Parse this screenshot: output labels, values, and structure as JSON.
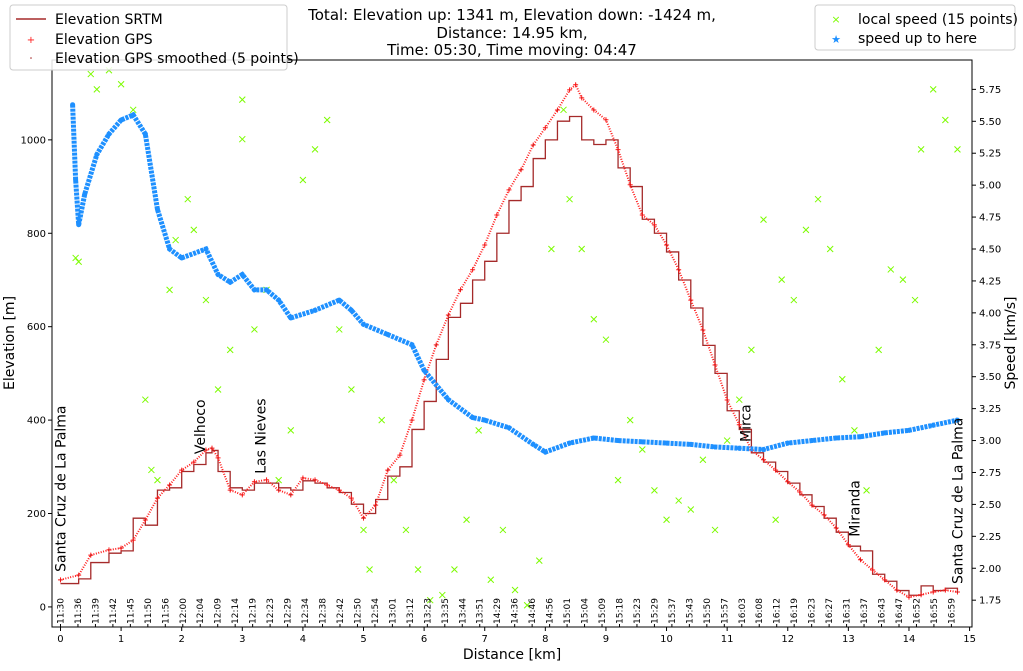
{
  "chart_data": {
    "type": "line",
    "title_lines": [
      "Total: Elevation up: 1341 m, Elevation down: -1424 m,",
      "Distance: 14.95 km,",
      "Time: 05:30, Time moving: 04:47"
    ],
    "xlabel": "Distance [km]",
    "ylabel_left": "Elevation [m]",
    "ylabel_right": "Speed [km/s]",
    "xlim": [
      -0.14,
      15.04
    ],
    "ylim_left": [
      -43,
      1171
    ],
    "ylim_right": [
      1.54,
      5.98
    ],
    "x_ticks": [
      0,
      1,
      2,
      3,
      4,
      5,
      6,
      7,
      8,
      9,
      10,
      11,
      12,
      13,
      14,
      15
    ],
    "y_ticks_left": [
      0,
      200,
      400,
      600,
      800,
      1000
    ],
    "y_ticks_right": [
      "1.75",
      "2.00",
      "2.25",
      "2.50",
      "2.75",
      "3.00",
      "3.25",
      "3.50",
      "3.75",
      "4.00",
      "4.25",
      "4.50",
      "4.75",
      "5.00",
      "5.25",
      "5.50",
      "5.75"
    ],
    "time_ticks": [
      "11:30",
      "11:36",
      "11:39",
      "11:42",
      "11:45",
      "11:50",
      "11:56",
      "12:00",
      "12:04",
      "12:09",
      "12:14",
      "12:19",
      "12:23",
      "12:29",
      "12:34",
      "12:38",
      "12:42",
      "12:50",
      "12:54",
      "13:01",
      "13:12",
      "13:23",
      "13:35",
      "13:44",
      "13:51",
      "14:29",
      "14:36",
      "14:46",
      "14:56",
      "15:01",
      "15:04",
      "15:09",
      "15:18",
      "15:23",
      "15:29",
      "15:37",
      "15:43",
      "15:50",
      "15:57",
      "16:03",
      "16:08",
      "16:12",
      "16:19",
      "16:23",
      "16:27",
      "16:31",
      "16:37",
      "16:43",
      "16:47",
      "16:52",
      "16:55",
      "16:59"
    ],
    "time_ticks_range_km": [
      0,
      14.7
    ],
    "legend_left": {
      "placement": "upper-left",
      "entries": [
        "Elevation SRTM",
        "Elevation GPS",
        "Elevation GPS smoothed (5 points)"
      ]
    },
    "legend_right": {
      "placement": "upper-right",
      "entries": [
        "local speed (15 points)",
        "speed up to here"
      ]
    },
    "colors": {
      "srtm": "#a52a2a",
      "gps": "#ff1a1a",
      "smoothed": "#a52a2a",
      "local_speed": "#7cfc00",
      "cumulative_speed": "#1e90ff"
    },
    "annotations": [
      {
        "km": 0.0,
        "text": "Santa Cruz de La Palma"
      },
      {
        "km": 2.3,
        "text": "Velhoco"
      },
      {
        "km": 3.3,
        "text": "Las Nieves"
      },
      {
        "km": 11.3,
        "text": "Mirca"
      },
      {
        "km": 13.1,
        "text": "Miranda"
      },
      {
        "km": 14.8,
        "text": "Santa Cruz de La Palma"
      }
    ],
    "series": [
      {
        "name": "Elevation GPS",
        "axis": "left",
        "points": [
          [
            0,
            58
          ],
          [
            0.3,
            68
          ],
          [
            0.5,
            111
          ],
          [
            0.8,
            122
          ],
          [
            1.0,
            126
          ],
          [
            1.2,
            143
          ],
          [
            1.4,
            186
          ],
          [
            1.6,
            233
          ],
          [
            1.8,
            261
          ],
          [
            2.0,
            293
          ],
          [
            2.2,
            310
          ],
          [
            2.4,
            336
          ],
          [
            2.5,
            340
          ],
          [
            2.6,
            319
          ],
          [
            2.8,
            250
          ],
          [
            3.0,
            240
          ],
          [
            3.2,
            268
          ],
          [
            3.4,
            272
          ],
          [
            3.6,
            250
          ],
          [
            3.8,
            240
          ],
          [
            4.0,
            276
          ],
          [
            4.2,
            272
          ],
          [
            4.4,
            261
          ],
          [
            4.6,
            250
          ],
          [
            4.8,
            233
          ],
          [
            5.0,
            190
          ],
          [
            5.2,
            218
          ],
          [
            5.4,
            293
          ],
          [
            5.6,
            325
          ],
          [
            5.8,
            400
          ],
          [
            6.0,
            486
          ],
          [
            6.2,
            561
          ],
          [
            6.4,
            625
          ],
          [
            6.6,
            679
          ],
          [
            6.8,
            722
          ],
          [
            7.0,
            775
          ],
          [
            7.2,
            839
          ],
          [
            7.4,
            893
          ],
          [
            7.6,
            936
          ],
          [
            7.8,
            989
          ],
          [
            8.0,
            1026
          ],
          [
            8.2,
            1064
          ],
          [
            8.4,
            1107
          ],
          [
            8.5,
            1118
          ],
          [
            8.6,
            1090
          ],
          [
            8.8,
            1064
          ],
          [
            9.0,
            1043
          ],
          [
            9.2,
            979
          ],
          [
            9.4,
            904
          ],
          [
            9.6,
            839
          ],
          [
            9.8,
            818
          ],
          [
            10.0,
            775
          ],
          [
            10.2,
            722
          ],
          [
            10.4,
            657
          ],
          [
            10.6,
            593
          ],
          [
            10.8,
            518
          ],
          [
            11.0,
            443
          ],
          [
            11.2,
            390
          ],
          [
            11.4,
            336
          ],
          [
            11.6,
            315
          ],
          [
            11.8,
            293
          ],
          [
            12.0,
            268
          ],
          [
            12.2,
            246
          ],
          [
            12.4,
            218
          ],
          [
            12.6,
            197
          ],
          [
            12.8,
            169
          ],
          [
            13.0,
            133
          ],
          [
            13.2,
            101
          ],
          [
            13.4,
            79
          ],
          [
            13.6,
            58
          ],
          [
            13.8,
            36
          ],
          [
            14.0,
            21
          ],
          [
            14.2,
            26
          ],
          [
            14.4,
            32
          ],
          [
            14.6,
            36
          ],
          [
            14.8,
            32
          ]
        ]
      },
      {
        "name": "Elevation SRTM",
        "axis": "left",
        "points": [
          [
            0,
            50
          ],
          [
            0.3,
            60
          ],
          [
            0.5,
            95
          ],
          [
            0.8,
            115
          ],
          [
            1.0,
            120
          ],
          [
            1.2,
            190
          ],
          [
            1.4,
            175
          ],
          [
            1.6,
            250
          ],
          [
            1.8,
            255
          ],
          [
            2.0,
            290
          ],
          [
            2.2,
            305
          ],
          [
            2.4,
            330
          ],
          [
            2.5,
            335
          ],
          [
            2.6,
            290
          ],
          [
            2.8,
            255
          ],
          [
            3.0,
            250
          ],
          [
            3.2,
            265
          ],
          [
            3.4,
            265
          ],
          [
            3.6,
            255
          ],
          [
            3.8,
            250
          ],
          [
            4.0,
            270
          ],
          [
            4.2,
            265
          ],
          [
            4.4,
            255
          ],
          [
            4.6,
            245
          ],
          [
            4.8,
            220
          ],
          [
            5.0,
            200
          ],
          [
            5.2,
            230
          ],
          [
            5.4,
            280
          ],
          [
            5.6,
            300
          ],
          [
            5.8,
            380
          ],
          [
            6.0,
            440
          ],
          [
            6.2,
            530
          ],
          [
            6.4,
            620
          ],
          [
            6.6,
            650
          ],
          [
            6.8,
            700
          ],
          [
            7.0,
            740
          ],
          [
            7.2,
            800
          ],
          [
            7.4,
            870
          ],
          [
            7.6,
            900
          ],
          [
            7.8,
            960
          ],
          [
            8.0,
            1000
          ],
          [
            8.2,
            1040
          ],
          [
            8.4,
            1050
          ],
          [
            8.5,
            1050
          ],
          [
            8.6,
            1000
          ],
          [
            8.8,
            990
          ],
          [
            9.0,
            1000
          ],
          [
            9.2,
            940
          ],
          [
            9.4,
            900
          ],
          [
            9.6,
            830
          ],
          [
            9.8,
            800
          ],
          [
            10.0,
            760
          ],
          [
            10.2,
            700
          ],
          [
            10.4,
            640
          ],
          [
            10.6,
            560
          ],
          [
            10.8,
            500
          ],
          [
            11.0,
            420
          ],
          [
            11.2,
            380
          ],
          [
            11.4,
            330
          ],
          [
            11.6,
            310
          ],
          [
            11.8,
            290
          ],
          [
            12.0,
            265
          ],
          [
            12.2,
            240
          ],
          [
            12.4,
            215
          ],
          [
            12.6,
            190
          ],
          [
            12.8,
            160
          ],
          [
            13.0,
            130
          ],
          [
            13.2,
            120
          ],
          [
            13.4,
            70
          ],
          [
            13.6,
            55
          ],
          [
            13.8,
            35
          ],
          [
            14.0,
            25
          ],
          [
            14.2,
            45
          ],
          [
            14.4,
            35
          ],
          [
            14.6,
            40
          ],
          [
            14.8,
            35
          ]
        ]
      },
      {
        "name": "speed up to here",
        "axis": "right",
        "points": [
          [
            0.2,
            5.63
          ],
          [
            0.25,
            5.04
          ],
          [
            0.3,
            4.69
          ],
          [
            0.4,
            4.93
          ],
          [
            0.6,
            5.24
          ],
          [
            0.8,
            5.4
          ],
          [
            1.0,
            5.51
          ],
          [
            1.2,
            5.55
          ],
          [
            1.4,
            5.4
          ],
          [
            1.6,
            4.81
          ],
          [
            1.8,
            4.5
          ],
          [
            2.0,
            4.43
          ],
          [
            2.4,
            4.5
          ],
          [
            2.6,
            4.3
          ],
          [
            2.8,
            4.24
          ],
          [
            3.0,
            4.3
          ],
          [
            3.2,
            4.18
          ],
          [
            3.4,
            4.18
          ],
          [
            3.6,
            4.1
          ],
          [
            3.8,
            3.96
          ],
          [
            4.2,
            4.02
          ],
          [
            4.6,
            4.1
          ],
          [
            4.8,
            4.02
          ],
          [
            5.0,
            3.91
          ],
          [
            5.4,
            3.83
          ],
          [
            5.8,
            3.75
          ],
          [
            6.0,
            3.55
          ],
          [
            6.4,
            3.32
          ],
          [
            6.8,
            3.18
          ],
          [
            7.0,
            3.16
          ],
          [
            7.4,
            3.1
          ],
          [
            7.8,
            2.97
          ],
          [
            8.0,
            2.91
          ],
          [
            8.4,
            2.98
          ],
          [
            8.8,
            3.02
          ],
          [
            9.2,
            3.0
          ],
          [
            9.6,
            2.99
          ],
          [
            10.0,
            2.98
          ],
          [
            10.4,
            2.97
          ],
          [
            10.8,
            2.95
          ],
          [
            11.2,
            2.94
          ],
          [
            11.6,
            2.93
          ],
          [
            12.0,
            2.98
          ],
          [
            12.4,
            3.0
          ],
          [
            12.8,
            3.02
          ],
          [
            13.2,
            3.03
          ],
          [
            13.6,
            3.06
          ],
          [
            14.0,
            3.08
          ],
          [
            14.4,
            3.12
          ],
          [
            14.8,
            3.16
          ]
        ]
      },
      {
        "name": "local speed (15 points)",
        "axis": "right",
        "points": [
          [
            0.25,
            4.43
          ],
          [
            0.3,
            4.4
          ],
          [
            0.5,
            5.87
          ],
          [
            0.6,
            5.75
          ],
          [
            0.8,
            5.9
          ],
          [
            1.0,
            5.79
          ],
          [
            1.2,
            5.59
          ],
          [
            1.4,
            3.32
          ],
          [
            1.5,
            2.77
          ],
          [
            1.6,
            2.69
          ],
          [
            1.8,
            4.18
          ],
          [
            1.9,
            4.57
          ],
          [
            2.1,
            4.89
          ],
          [
            2.2,
            4.65
          ],
          [
            2.4,
            4.1
          ],
          [
            2.6,
            3.4
          ],
          [
            2.8,
            3.71
          ],
          [
            3.0,
            5.67
          ],
          [
            3.0,
            5.36
          ],
          [
            3.2,
            3.87
          ],
          [
            3.4,
            4.18
          ],
          [
            3.6,
            2.69
          ],
          [
            3.8,
            3.08
          ],
          [
            4.0,
            5.04
          ],
          [
            4.2,
            5.28
          ],
          [
            4.4,
            5.51
          ],
          [
            4.6,
            3.87
          ],
          [
            4.8,
            3.4
          ],
          [
            5.0,
            2.3
          ],
          [
            5.1,
            1.99
          ],
          [
            5.3,
            3.16
          ],
          [
            5.5,
            2.69
          ],
          [
            5.7,
            2.3
          ],
          [
            5.9,
            1.99
          ],
          [
            6.1,
            1.75
          ],
          [
            6.3,
            1.79
          ],
          [
            6.5,
            1.99
          ],
          [
            6.7,
            2.38
          ],
          [
            6.9,
            3.08
          ],
          [
            7.1,
            1.91
          ],
          [
            7.3,
            2.3
          ],
          [
            7.5,
            1.83
          ],
          [
            7.7,
            1.71
          ],
          [
            7.9,
            2.06
          ],
          [
            8.1,
            4.5
          ],
          [
            8.3,
            5.59
          ],
          [
            8.4,
            4.89
          ],
          [
            8.6,
            4.5
          ],
          [
            8.8,
            3.95
          ],
          [
            9.0,
            3.79
          ],
          [
            9.2,
            2.69
          ],
          [
            9.4,
            3.16
          ],
          [
            9.6,
            2.93
          ],
          [
            9.8,
            2.61
          ],
          [
            10.0,
            2.38
          ],
          [
            10.2,
            2.53
          ],
          [
            10.4,
            2.46
          ],
          [
            10.6,
            2.85
          ],
          [
            10.8,
            2.3
          ],
          [
            11.0,
            3.0
          ],
          [
            11.2,
            3.32
          ],
          [
            11.4,
            3.71
          ],
          [
            11.6,
            4.73
          ],
          [
            11.8,
            2.38
          ],
          [
            11.9,
            4.26
          ],
          [
            12.1,
            4.1
          ],
          [
            12.3,
            4.65
          ],
          [
            12.5,
            4.89
          ],
          [
            12.7,
            4.5
          ],
          [
            12.9,
            3.48
          ],
          [
            13.1,
            3.08
          ],
          [
            13.3,
            2.61
          ],
          [
            13.5,
            3.71
          ],
          [
            13.7,
            4.34
          ],
          [
            13.9,
            4.26
          ],
          [
            14.1,
            4.1
          ],
          [
            14.2,
            5.28
          ],
          [
            14.4,
            5.75
          ],
          [
            14.6,
            5.51
          ],
          [
            14.8,
            5.28
          ]
        ]
      }
    ]
  }
}
